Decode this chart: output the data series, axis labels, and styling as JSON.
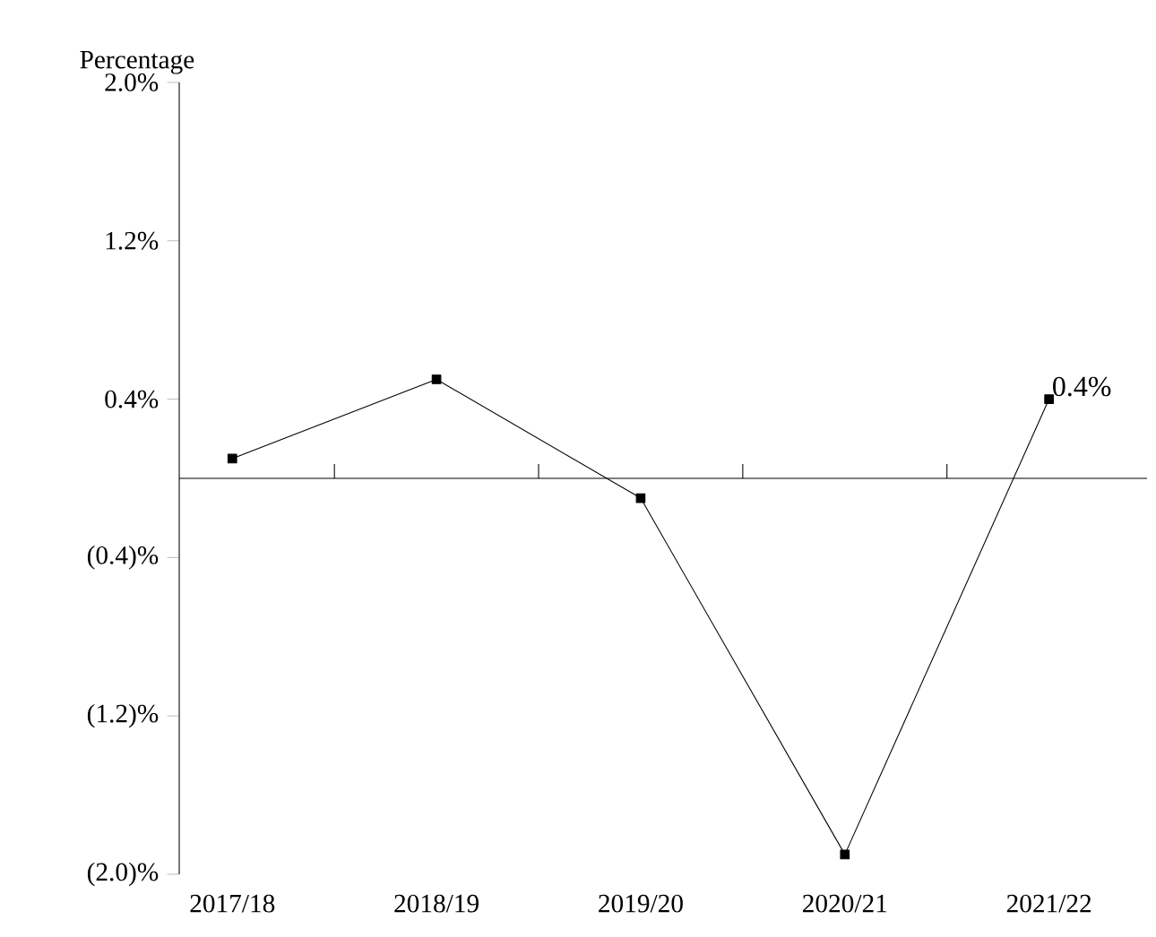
{
  "chart_data": {
    "type": "line",
    "ylabel": "Percentage",
    "categories": [
      "2017/18",
      "2018/19",
      "2019/20",
      "2020/21",
      "2021/22"
    ],
    "values": [
      0.1,
      0.5,
      -0.1,
      -1.9,
      0.4
    ],
    "value_labels": [
      null,
      null,
      null,
      null,
      "0.4%"
    ],
    "color": "#000000",
    "marker": "square",
    "line_style": "solid",
    "ylim": [
      -2.0,
      2.0
    ],
    "yticks": [
      {
        "value": -2.0,
        "label": "(2.0)%"
      },
      {
        "value": -1.2,
        "label": "(1.2)%"
      },
      {
        "value": -0.4,
        "label": "(0.4)%"
      },
      {
        "value": 0.4,
        "label": "0.4%"
      },
      {
        "value": 1.2,
        "label": "1.2%"
      },
      {
        "value": 2.0,
        "label": "2.0%"
      }
    ]
  }
}
